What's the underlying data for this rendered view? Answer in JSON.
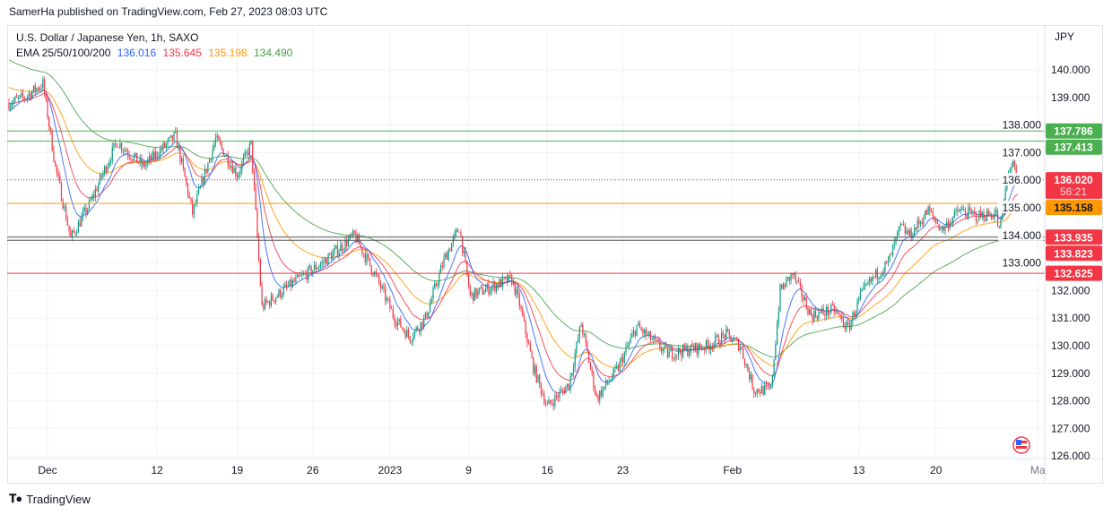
{
  "header": {
    "published": "SamerHa published on TradingView.com, Feb 27, 2023 08:03 UTC"
  },
  "legend": {
    "symbol": "U.S. Dollar / Japanese Yen, 1h, SAXO",
    "ema_label": "EMA 25/50/100/200",
    "ema_values": [
      "136.016",
      "135.645",
      "135.198",
      "134.490"
    ]
  },
  "axis": {
    "currency": "JPY"
  },
  "footer": {
    "brand": "TradingView"
  },
  "colors": {
    "up": "#089981",
    "down": "#f23645",
    "ema25": "#2962ff",
    "ema50": "#f23645",
    "ema100": "#ff9800",
    "ema200": "#43a047"
  },
  "chart_data": {
    "type": "candlestick",
    "title": "U.S. Dollar / Japanese Yen, 1h, SAXO",
    "x_unit": "trading days from chart start",
    "xlim": [
      0,
      67.2
    ],
    "ylim": [
      125.9,
      141.6
    ],
    "y_ticks": [
      "126.000",
      "127.000",
      "128.000",
      "129.000",
      "130.000",
      "131.000",
      "132.000",
      "133.000",
      "134.000",
      "135.000",
      "136.000",
      "137.000",
      "138.000",
      "139.000",
      "140.000"
    ],
    "x_ticks": [
      {
        "t": 2.5,
        "label": "Dec"
      },
      {
        "t": 9.6,
        "label": "12"
      },
      {
        "t": 14.8,
        "label": "19"
      },
      {
        "t": 19.7,
        "label": "26"
      },
      {
        "t": 24.7,
        "label": "2023"
      },
      {
        "t": 29.8,
        "label": "9"
      },
      {
        "t": 34.9,
        "label": "16"
      },
      {
        "t": 39.8,
        "label": "23"
      },
      {
        "t": 46.9,
        "label": "Feb"
      },
      {
        "t": 55.1,
        "label": "13"
      },
      {
        "t": 60.1,
        "label": "20"
      },
      {
        "t": 66.7,
        "label": "Ma"
      }
    ],
    "price_path": [
      [
        0,
        138.8
      ],
      [
        1,
        139.0
      ],
      [
        2.2,
        139.5
      ],
      [
        3,
        136.5
      ],
      [
        4,
        133.9
      ],
      [
        5.2,
        135.1
      ],
      [
        7,
        137.4
      ],
      [
        8.7,
        136.5
      ],
      [
        10.8,
        137.6
      ],
      [
        11.9,
        134.8
      ],
      [
        13.4,
        137.5
      ],
      [
        14.8,
        136.2
      ],
      [
        15.7,
        137.3
      ],
      [
        16.4,
        131.4
      ],
      [
        18,
        132.1
      ],
      [
        20.3,
        133.0
      ],
      [
        22.4,
        134.0
      ],
      [
        23.8,
        132.5
      ],
      [
        25,
        131.0
      ],
      [
        26,
        130.3
      ],
      [
        27,
        131.0
      ],
      [
        28.2,
        133.1
      ],
      [
        29.2,
        134.3
      ],
      [
        29.9,
        131.8
      ],
      [
        32,
        132.3
      ],
      [
        32.6,
        132.4
      ],
      [
        33.1,
        131.5
      ],
      [
        34,
        129.2
      ],
      [
        34.9,
        127.8
      ],
      [
        36.3,
        128.6
      ],
      [
        37.1,
        130.8
      ],
      [
        38.1,
        128.1
      ],
      [
        39.5,
        129.2
      ],
      [
        40.7,
        130.7
      ],
      [
        42.7,
        129.7
      ],
      [
        45.3,
        130.0
      ],
      [
        46.5,
        130.4
      ],
      [
        47.4,
        130.0
      ],
      [
        48.3,
        128.4
      ],
      [
        49.4,
        128.4
      ],
      [
        50,
        132.0
      ],
      [
        50.8,
        132.6
      ],
      [
        52,
        131.1
      ],
      [
        53.5,
        131.3
      ],
      [
        54.4,
        130.6
      ],
      [
        55.2,
        131.8
      ],
      [
        56.1,
        132.5
      ],
      [
        57,
        133.0
      ],
      [
        57.8,
        134.3
      ],
      [
        58.4,
        134.0
      ],
      [
        59.6,
        134.9
      ],
      [
        60.5,
        134.2
      ],
      [
        61.6,
        134.9
      ],
      [
        62.8,
        134.7
      ],
      [
        64,
        134.8
      ],
      [
        64.2,
        134.0
      ],
      [
        64.8,
        136.4
      ],
      [
        65.1,
        136.5
      ],
      [
        65.4,
        136.02
      ]
    ],
    "ema_init": {
      "ema25": 138.5,
      "ema50": 138.8,
      "ema100": 139.4,
      "ema200": 140.4
    },
    "horizontal_levels": [
      {
        "value": 137.786,
        "label": "137.786",
        "color": "#4caf50",
        "text_color": "#ffffff"
      },
      {
        "value": 137.413,
        "label": "137.413",
        "color": "#4caf50",
        "text_color": "#ffffff"
      },
      {
        "value": 135.158,
        "label": "135.158",
        "color": "#ff9800",
        "text_color": "#131722"
      },
      {
        "value": 133.935,
        "label": "133.935",
        "color": "#f23645",
        "line_color": "#555555",
        "text_color": "#ffffff"
      },
      {
        "value": 133.823,
        "label": "133.823",
        "color": "#f23645",
        "line_color": "#555555",
        "text_color": "#ffffff"
      },
      {
        "value": 132.625,
        "label": "132.625",
        "color": "#f23645",
        "text_color": "#ffffff"
      }
    ],
    "last_price": {
      "value": 136.02,
      "label": "136.020",
      "countdown": "56:21",
      "color": "#f23645"
    }
  }
}
